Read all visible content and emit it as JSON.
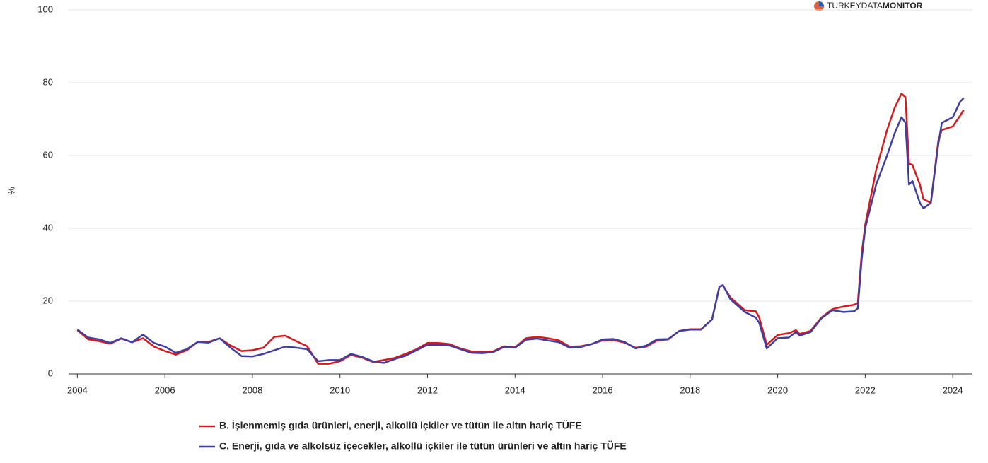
{
  "chart_data": {
    "type": "line",
    "logo": [
      "TURKEYDATA",
      "MONITOR"
    ],
    "y_label": "%",
    "x": [
      2004.0,
      2004.25,
      2004.5,
      2004.75,
      2005.0,
      2005.25,
      2005.5,
      2005.75,
      2006.0,
      2006.25,
      2006.5,
      2006.75,
      2007.0,
      2007.25,
      2007.5,
      2007.75,
      2008.0,
      2008.25,
      2008.5,
      2008.75,
      2009.0,
      2009.25,
      2009.5,
      2009.75,
      2010.0,
      2010.25,
      2010.5,
      2010.75,
      2011.0,
      2011.25,
      2011.5,
      2011.75,
      2012.0,
      2012.25,
      2012.5,
      2012.75,
      2013.0,
      2013.25,
      2013.5,
      2013.75,
      2014.0,
      2014.25,
      2014.5,
      2014.75,
      2015.0,
      2015.25,
      2015.5,
      2015.75,
      2016.0,
      2016.25,
      2016.5,
      2016.75,
      2017.0,
      2017.25,
      2017.5,
      2017.75,
      2018.0,
      2018.25,
      2018.5,
      2018.67,
      2018.75,
      2018.92,
      2019.25,
      2019.5,
      2019.58,
      2019.75,
      2020.0,
      2020.25,
      2020.42,
      2020.5,
      2020.75,
      2021.0,
      2021.25,
      2021.5,
      2021.75,
      2021.83,
      2021.92,
      2022.0,
      2022.25,
      2022.5,
      2022.67,
      2022.83,
      2022.92,
      2023.0,
      2023.08,
      2023.25,
      2023.33,
      2023.5,
      2023.67,
      2023.75,
      2024.0,
      2024.17,
      2024.25
    ],
    "series": [
      {
        "name": "B. İşlenmemiş gıda ürünleri, enerji, alkollü içkiler ve tütün ile altın hariç TÜFE",
        "color": "#d7191c",
        "values": [
          12,
          9.5,
          9,
          8.3,
          9.7,
          8.7,
          9.8,
          7.5,
          6.3,
          5.3,
          6.5,
          8.8,
          8.8,
          9.8,
          7.8,
          6.3,
          6.5,
          7.2,
          10.2,
          10.5,
          9,
          7.6,
          2.8,
          2.8,
          3.5,
          5.2,
          4.5,
          3.3,
          3.8,
          4.4,
          5.5,
          6.8,
          8.5,
          8.5,
          8.2,
          7,
          6.2,
          6.1,
          6.2,
          7.6,
          7.3,
          9.8,
          10.2,
          9.8,
          9.2,
          7.5,
          7.6,
          8.2,
          9.2,
          9.3,
          8.6,
          7.2,
          7.5,
          9.2,
          9.5,
          11.8,
          12.3,
          12.3,
          15,
          24,
          24.3,
          21,
          17.5,
          17.2,
          15.5,
          8,
          10.7,
          11.2,
          12,
          11,
          11.8,
          15.5,
          17.8,
          18.5,
          19,
          19.5,
          33,
          41,
          56,
          67,
          73,
          77,
          76,
          57.8,
          57.4,
          52,
          48,
          47,
          64,
          67,
          68,
          71,
          72.5
        ]
      },
      {
        "name": "C. Enerji, gıda ve alkolsüz içecekler, alkollü içkiler ile tütün ürünleri ve altın hariç TÜFE",
        "color": "#3f3f9f",
        "values": [
          12.2,
          10,
          9.5,
          8.5,
          9.8,
          8.7,
          10.8,
          8.5,
          7.5,
          5.8,
          6.8,
          8.8,
          8.6,
          9.8,
          7.2,
          4.9,
          4.8,
          5.5,
          6.5,
          7.5,
          7.2,
          6.8,
          3.5,
          3.8,
          3.8,
          5.5,
          4.7,
          3.5,
          3,
          4.1,
          5,
          6.5,
          8,
          8,
          7.8,
          6.8,
          5.8,
          5.7,
          6,
          7.4,
          7.2,
          9.4,
          9.7,
          9.2,
          8.7,
          7.2,
          7.4,
          8.2,
          9.5,
          9.6,
          8.8,
          7,
          7.8,
          9.5,
          9.6,
          11.8,
          12.2,
          12.2,
          15,
          24,
          24.4,
          20.5,
          17,
          15.5,
          14,
          7,
          9.8,
          10,
          11.5,
          10.5,
          11.5,
          15.3,
          17.5,
          17,
          17.2,
          18,
          31.5,
          40,
          52,
          60,
          66,
          70.5,
          69,
          52,
          53,
          47,
          45.5,
          47,
          63,
          69,
          70.5,
          74.8,
          75.8
        ]
      }
    ],
    "xlim": [
      2003.8,
      2024.45
    ],
    "xticks": [
      2004,
      2006,
      2008,
      2010,
      2012,
      2014,
      2016,
      2018,
      2020,
      2022,
      2024
    ],
    "ylim": [
      0,
      100
    ],
    "yticks": [
      0,
      20,
      40,
      60,
      80,
      100
    ],
    "grid": true
  }
}
